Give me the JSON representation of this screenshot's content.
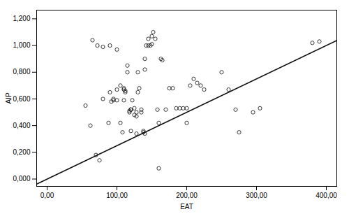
{
  "chart_data": {
    "type": "scatter",
    "xlabel": "EAT",
    "ylabel": "AIP",
    "xlim": [
      -15,
      415
    ],
    "ylim": [
      -0.055,
      1.265
    ],
    "xticks": [
      {
        "value": 0,
        "label": "0,00"
      },
      {
        "value": 100,
        "label": "100,00"
      },
      {
        "value": 200,
        "label": "200,00"
      },
      {
        "value": 300,
        "label": "300,00"
      },
      {
        "value": 400,
        "label": "400,00"
      }
    ],
    "yticks": [
      {
        "value": 0.0,
        "label": "0,000"
      },
      {
        "value": 0.2,
        "label": "0,200"
      },
      {
        "value": 0.4,
        "label": "0,400"
      },
      {
        "value": 0.6,
        "label": "0,600"
      },
      {
        "value": 0.8,
        "label": "0,800"
      },
      {
        "value": 1.0,
        "label": "1,000"
      },
      {
        "value": 1.2,
        "label": "1,200"
      }
    ],
    "grid": false,
    "series": [
      {
        "type": "scatter",
        "color": "#222222",
        "marker": "circle",
        "x": [
          55,
          62,
          70,
          75,
          80,
          88,
          90,
          92,
          95,
          95,
          100,
          100,
          105,
          108,
          110,
          110,
          110,
          112,
          112,
          115,
          115,
          118,
          118,
          120,
          120,
          120,
          122,
          125,
          125,
          128,
          128,
          130,
          130,
          132,
          135,
          135,
          138,
          138,
          140,
          140,
          142,
          145,
          145,
          148,
          150,
          150,
          152,
          155,
          158,
          160,
          160,
          163,
          165,
          170,
          175,
          180,
          185,
          190,
          195,
          200,
          200,
          205,
          210,
          215,
          220,
          225,
          250,
          260,
          270,
          275,
          295,
          305,
          380,
          390,
          65,
          72,
          80,
          90,
          100,
          105,
          120,
          128,
          140
        ],
        "values": [
          0.55,
          0.4,
          0.18,
          0.14,
          0.6,
          0.42,
          0.65,
          0.58,
          0.59,
          0.6,
          0.59,
          0.67,
          0.7,
          0.35,
          0.59,
          0.67,
          0.68,
          0.65,
          0.66,
          0.8,
          0.85,
          0.5,
          0.51,
          0.52,
          0.52,
          0.52,
          0.59,
          0.48,
          0.53,
          0.47,
          0.5,
          0.65,
          0.8,
          0.68,
          0.52,
          0.5,
          0.35,
          0.36,
          0.82,
          0.9,
          1.0,
          1.0,
          1.05,
          1.0,
          1.01,
          1.07,
          1.1,
          1.05,
          0.52,
          0.08,
          0.42,
          0.9,
          0.89,
          0.52,
          0.68,
          0.68,
          0.53,
          0.53,
          0.53,
          0.42,
          0.53,
          0.7,
          0.75,
          0.72,
          0.7,
          0.67,
          0.8,
          0.67,
          0.52,
          0.35,
          0.5,
          0.53,
          1.02,
          1.03,
          1.04,
          1.0,
          0.99,
          1.0,
          0.97,
          0.42,
          0.36,
          0.34,
          0.34
        ]
      },
      {
        "type": "line",
        "color": "#111111",
        "x": [
          -15,
          415
        ],
        "values": [
          -0.0375,
          1.0375
        ]
      }
    ]
  }
}
